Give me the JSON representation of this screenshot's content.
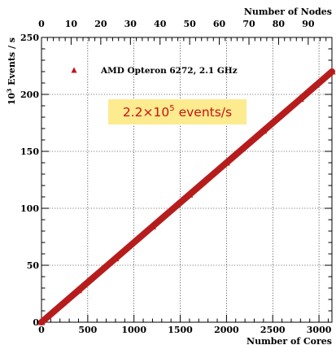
{
  "chart_data": {
    "type": "scatter",
    "x_bottom": {
      "label": "Number of Cores",
      "range": [
        0,
        3140
      ],
      "ticks": [
        0,
        500,
        1000,
        1500,
        2000,
        2500,
        3000
      ],
      "tick_labels": [
        "0",
        "500",
        "1000",
        "1500",
        "2000",
        "2500",
        "3000"
      ]
    },
    "x_top": {
      "label": "Number of Nodes",
      "range": [
        0,
        98
      ],
      "ticks": [
        0,
        10,
        20,
        30,
        40,
        50,
        60,
        70,
        80,
        90
      ],
      "tick_labels": [
        "0",
        "10",
        "20",
        "30",
        "40",
        "50",
        "60",
        "70",
        "80",
        "90"
      ]
    },
    "y": {
      "label_base": "10",
      "label_exp": "3",
      "label_rest": " Events / s",
      "range": [
        0,
        250
      ],
      "ticks": [
        0,
        50,
        100,
        150,
        200,
        250
      ],
      "tick_labels": [
        "0",
        "50",
        "100",
        "150",
        "200",
        "250"
      ]
    },
    "grid": true,
    "legend": {
      "position": "top-left",
      "entries": [
        {
          "marker": "triangle",
          "color": "#c0141a",
          "label": "AMD Opteron 6272,  2.1 GHz"
        }
      ]
    },
    "series": [
      {
        "name": "AMD Opteron 6272,  2.1 GHz",
        "color": "#b71c1c",
        "x": [
          0,
          400,
          800,
          1200,
          1600,
          2000,
          2400,
          2800,
          3140
        ],
        "y": [
          0,
          28,
          56,
          84,
          112,
          140,
          168,
          196,
          220
        ]
      }
    ],
    "annotation": {
      "base": "2.2×10",
      "sup": "5",
      "rest": " events/s",
      "background": "#fdeb8f",
      "color": "#cc1111"
    }
  }
}
